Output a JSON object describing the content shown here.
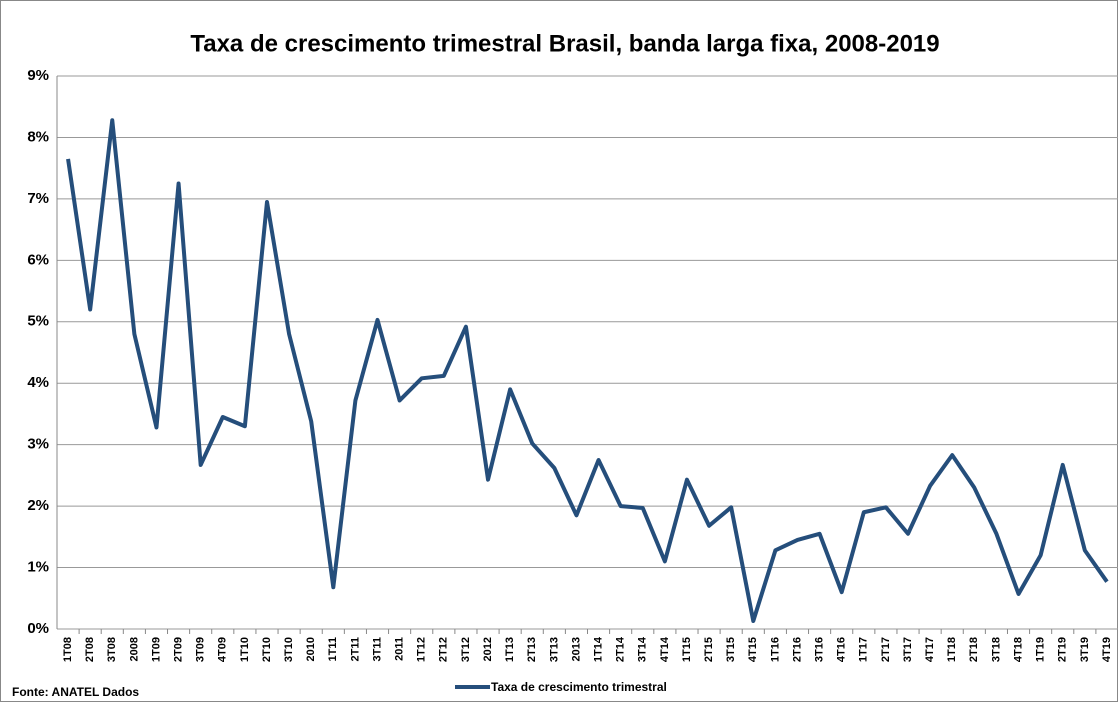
{
  "chart_data": {
    "type": "line",
    "title": "Taxa de crescimento trimestral Brasil, banda larga fixa, 2008-2019",
    "source": "Fonte: ANATEL Dados",
    "categories": [
      "1T08",
      "2T08",
      "3T08",
      "2008",
      "1T09",
      "2T09",
      "3T09",
      "4T09",
      "1T10",
      "2T10",
      "3T10",
      "2010",
      "1T11",
      "2T11",
      "3T11",
      "2011",
      "1T12",
      "2T12",
      "3T12",
      "2012",
      "1T13",
      "2T13",
      "3T13",
      "2013",
      "1T14",
      "2T14",
      "3T14",
      "4T14",
      "1T15",
      "2T15",
      "3T15",
      "4T15",
      "1T16",
      "2T16",
      "3T16",
      "4T16",
      "1T17",
      "2T17",
      "3T17",
      "4T17",
      "1T18",
      "2T18",
      "3T18",
      "4T18",
      "1T19",
      "2T19",
      "3T19",
      "4T19"
    ],
    "series": [
      {
        "name": "Taxa de crescimento trimestral",
        "color": "#254e7b",
        "values": [
          7.65,
          5.2,
          8.28,
          4.8,
          3.28,
          7.25,
          2.67,
          3.45,
          3.3,
          6.95,
          4.8,
          3.38,
          0.68,
          3.72,
          5.03,
          3.72,
          4.08,
          4.12,
          4.92,
          2.43,
          3.9,
          3.02,
          2.62,
          1.85,
          2.75,
          2.0,
          1.97,
          1.1,
          2.43,
          1.68,
          1.98,
          0.13,
          1.28,
          1.45,
          1.55,
          0.6,
          1.9,
          1.98,
          1.55,
          2.33,
          2.83,
          2.3,
          1.55,
          0.57,
          1.2,
          2.67,
          1.28,
          0.77
        ]
      }
    ],
    "ylim": [
      0,
      9
    ],
    "yticks": [
      {
        "value": 0,
        "label": "0%"
      },
      {
        "value": 1,
        "label": "1%"
      },
      {
        "value": 2,
        "label": "2%"
      },
      {
        "value": 3,
        "label": "3%"
      },
      {
        "value": 4,
        "label": "4%"
      },
      {
        "value": 5,
        "label": "5%"
      },
      {
        "value": 6,
        "label": "6%"
      },
      {
        "value": 7,
        "label": "7%"
      },
      {
        "value": 8,
        "label": "8%"
      },
      {
        "value": 9,
        "label": "9%"
      }
    ],
    "grid": true,
    "legend": "bottom"
  }
}
